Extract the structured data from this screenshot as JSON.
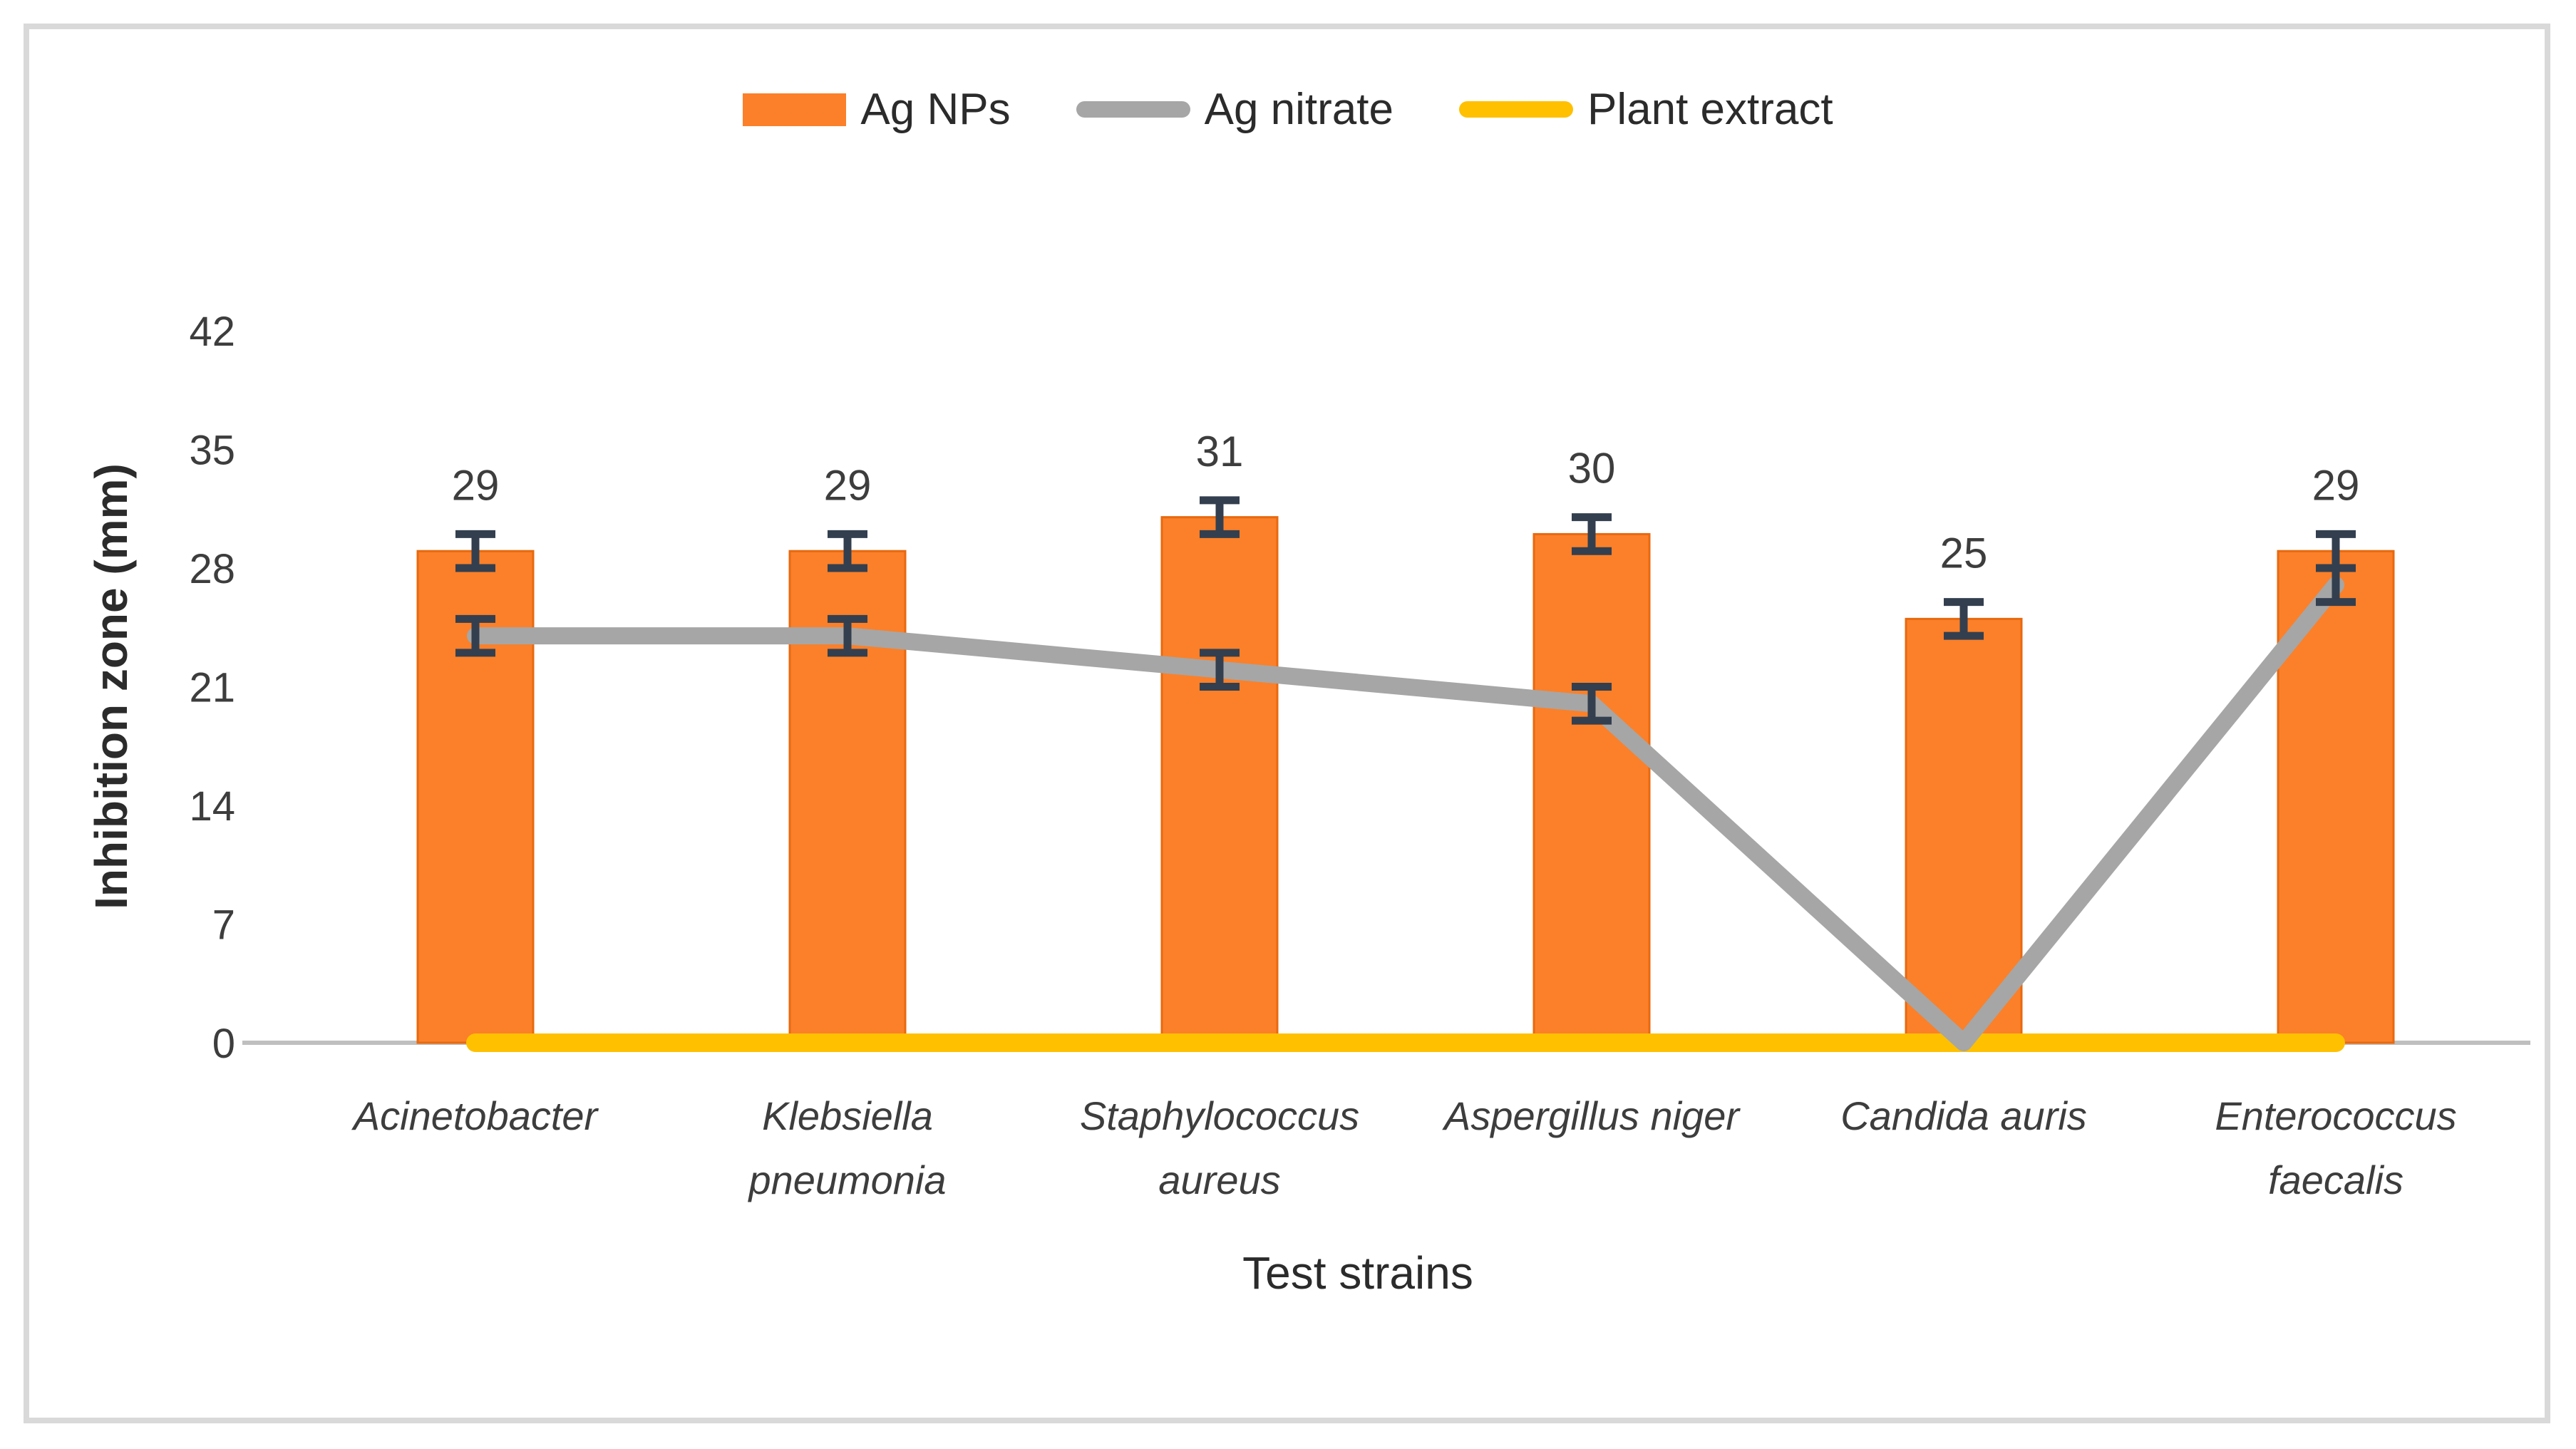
{
  "figure": {
    "background": "#FFFFFF",
    "border_color": "#D9D9D9"
  },
  "chart_data": {
    "type": "combo-bar-line",
    "title": "",
    "xlabel": "Test strains",
    "ylabel": "Inhibition zone (mm)",
    "yticks": [
      0,
      7,
      14,
      21,
      28,
      35,
      42
    ],
    "ylim": [
      0,
      42
    ],
    "grid": false,
    "legend_position": "top-center",
    "categories": [
      [
        "Acinetobacter"
      ],
      [
        "Klebsiella",
        "pneumonia"
      ],
      [
        "Staphylococcus",
        "aureus"
      ],
      [
        "Aspergillus niger"
      ],
      [
        "Candida auris"
      ],
      [
        "Enterococcus",
        "faecalis"
      ]
    ],
    "series": [
      {
        "name": "Ag NPs",
        "type": "bar",
        "color": "#FB8029",
        "edge_color": "#E8690F",
        "values": [
          29,
          29,
          31,
          30,
          25,
          29
        ],
        "data_labels": [
          "29",
          "29",
          "31",
          "30",
          "25",
          "29"
        ],
        "errors": [
          1,
          1,
          1,
          1,
          1,
          1
        ]
      },
      {
        "name": "Ag nitrate",
        "type": "line",
        "color": "#A6A6A6",
        "values": [
          24,
          24,
          22,
          20,
          0,
          27
        ],
        "errors": [
          1,
          1,
          1,
          1,
          0,
          1
        ]
      },
      {
        "name": "Plant extract",
        "type": "line",
        "color": "#FFC000",
        "values": [
          0,
          0,
          0,
          0,
          0,
          0
        ],
        "errors": [
          0,
          0,
          0,
          0,
          0,
          0
        ]
      }
    ],
    "error_bar_color": "#333F4F",
    "axis_line_color": "#BFBFBF",
    "text_color": "#3D3D3D"
  }
}
